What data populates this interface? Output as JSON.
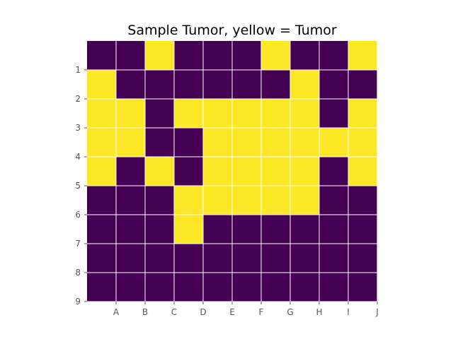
{
  "chart_data": {
    "type": "heatmap",
    "title": "Sample Tumor, yellow = Tumor",
    "x_tick_labels": [
      "A",
      "B",
      "C",
      "D",
      "E",
      "F",
      "G",
      "H",
      "I",
      "J"
    ],
    "y_tick_labels": [
      "1",
      "2",
      "3",
      "4",
      "5",
      "6",
      "7",
      "8",
      "9"
    ],
    "grid": true,
    "colors": {
      "tumor": "#fde725",
      "background": "#440154",
      "grid": "#ffffff",
      "tick": "#555555"
    },
    "legend": "none",
    "values": [
      [
        0,
        0,
        1,
        0,
        0,
        0,
        1,
        0,
        0,
        1
      ],
      [
        1,
        0,
        0,
        0,
        0,
        0,
        0,
        1,
        0,
        0
      ],
      [
        1,
        1,
        0,
        1,
        1,
        1,
        1,
        1,
        0,
        1
      ],
      [
        1,
        1,
        0,
        0,
        1,
        1,
        1,
        1,
        1,
        1
      ],
      [
        1,
        0,
        1,
        0,
        1,
        1,
        1,
        1,
        0,
        1
      ],
      [
        0,
        0,
        0,
        1,
        1,
        1,
        1,
        1,
        0,
        0
      ],
      [
        0,
        0,
        0,
        1,
        0,
        0,
        0,
        0,
        0,
        0
      ],
      [
        0,
        0,
        0,
        0,
        0,
        0,
        0,
        0,
        0,
        0
      ],
      [
        0,
        0,
        0,
        0,
        0,
        0,
        0,
        0,
        0,
        0
      ]
    ]
  }
}
